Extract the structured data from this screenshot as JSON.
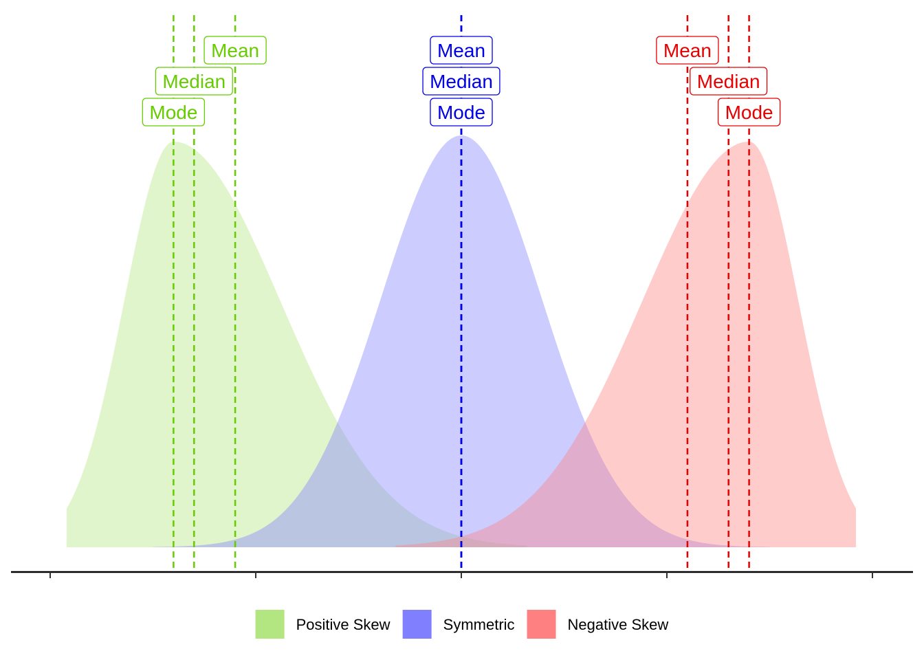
{
  "chart_data": {
    "type": "area",
    "title": "",
    "xlabel": "",
    "ylabel": "",
    "xlim": [
      -10,
      10
    ],
    "ylim": [
      0,
      1
    ],
    "x_ticks": [
      -10,
      -5,
      0,
      5,
      10
    ],
    "x_tick_labels_shown": false,
    "grid": false,
    "legend_position": "bottom",
    "series": [
      {
        "name": "Positive Skew",
        "color": "#b3e681",
        "line_color": "#66cc00",
        "fill_opacity": 0.4,
        "peak_density": 0.985,
        "statistics": [
          {
            "label": "Mean",
            "x": -5.5
          },
          {
            "label": "Median",
            "x": -6.5
          },
          {
            "label": "Mode",
            "x": -7.0
          }
        ]
      },
      {
        "name": "Symmetric",
        "color": "#8080ff",
        "line_color": "#0000e6",
        "fill_opacity": 0.4,
        "peak_density": 1.0,
        "statistics": [
          {
            "label": "Mean",
            "x": 0.0
          },
          {
            "label": "Median",
            "x": 0.0
          },
          {
            "label": "Mode",
            "x": 0.0
          }
        ]
      },
      {
        "name": "Negative Skew",
        "color": "#ff8080",
        "line_color": "#e60000",
        "fill_opacity": 0.4,
        "peak_density": 0.985,
        "statistics": [
          {
            "label": "Mean",
            "x": 5.5
          },
          {
            "label": "Median",
            "x": 6.5
          },
          {
            "label": "Mode",
            "x": 7.0
          }
        ]
      }
    ]
  }
}
